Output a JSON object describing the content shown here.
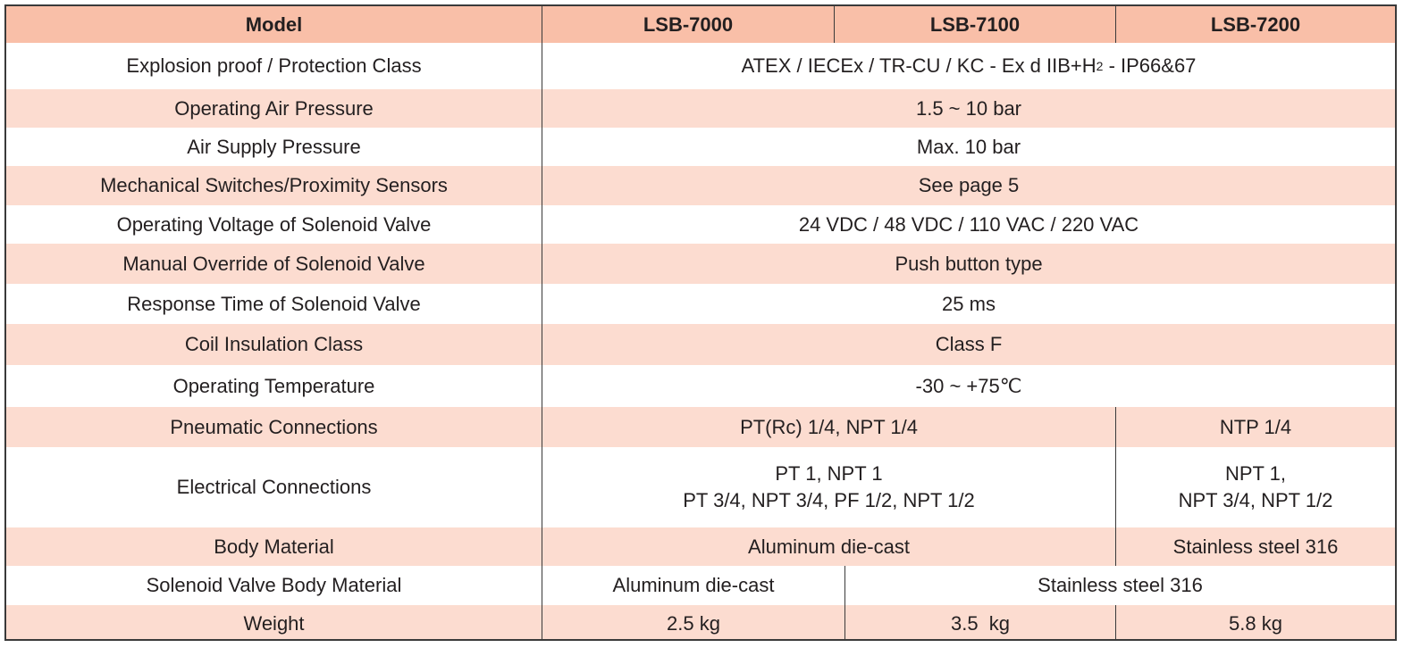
{
  "header": {
    "label": "Model",
    "models": [
      "LSB-7000",
      "LSB-7100",
      "LSB-7200"
    ]
  },
  "rows": [
    {
      "label": "Explosion proof / Protection Class",
      "value": "ATEX / IECEx / TR-CU / KC - Ex d IIB+H",
      "value_sub": "2",
      "value_tail": " - IP66&67"
    },
    {
      "label": "Operating Air Pressure",
      "value": "1.5 ~ 10 bar"
    },
    {
      "label": "Air Supply Pressure",
      "value": "Max. 10 bar"
    },
    {
      "label": "Mechanical Switches/Proximity Sensors",
      "value": "See page 5"
    },
    {
      "label": "Operating Voltage of Solenoid Valve",
      "value": "24 VDC / 48 VDC / 110 VAC / 220 VAC"
    },
    {
      "label": "Manual Override of Solenoid Valve",
      "value": "Push button type"
    },
    {
      "label": "Response Time of Solenoid Valve",
      "value": "25 ms"
    },
    {
      "label": "Coil Insulation Class",
      "value": "Class F"
    },
    {
      "label": "Operating Temperature",
      "value": "-30 ~ +75℃"
    },
    {
      "label": "Pneumatic Connections",
      "a": "PT(Rc) 1/4, NPT 1/4",
      "b": "NTP 1/4"
    },
    {
      "label": "Electrical Connections",
      "a1": "PT 1, NPT 1",
      "a2": "PT 3/4, NPT 3/4, PF 1/2, NPT 1/2",
      "b1": "NPT 1,",
      "b2": "NPT 3/4, NPT 1/2"
    },
    {
      "label": "Body Material",
      "a": "Aluminum die-cast",
      "b": "Stainless steel 316"
    },
    {
      "label": "Solenoid Valve Body Material",
      "a": "Aluminum die-cast",
      "b": "Stainless steel 316"
    },
    {
      "label": "Weight",
      "values": [
        "2.5 kg",
        "3.5  kg",
        "5.8 kg"
      ]
    }
  ],
  "colors": {
    "header": "#f9bfa8",
    "stripe": "#fcdcd0",
    "border": "#3a3a3a"
  }
}
